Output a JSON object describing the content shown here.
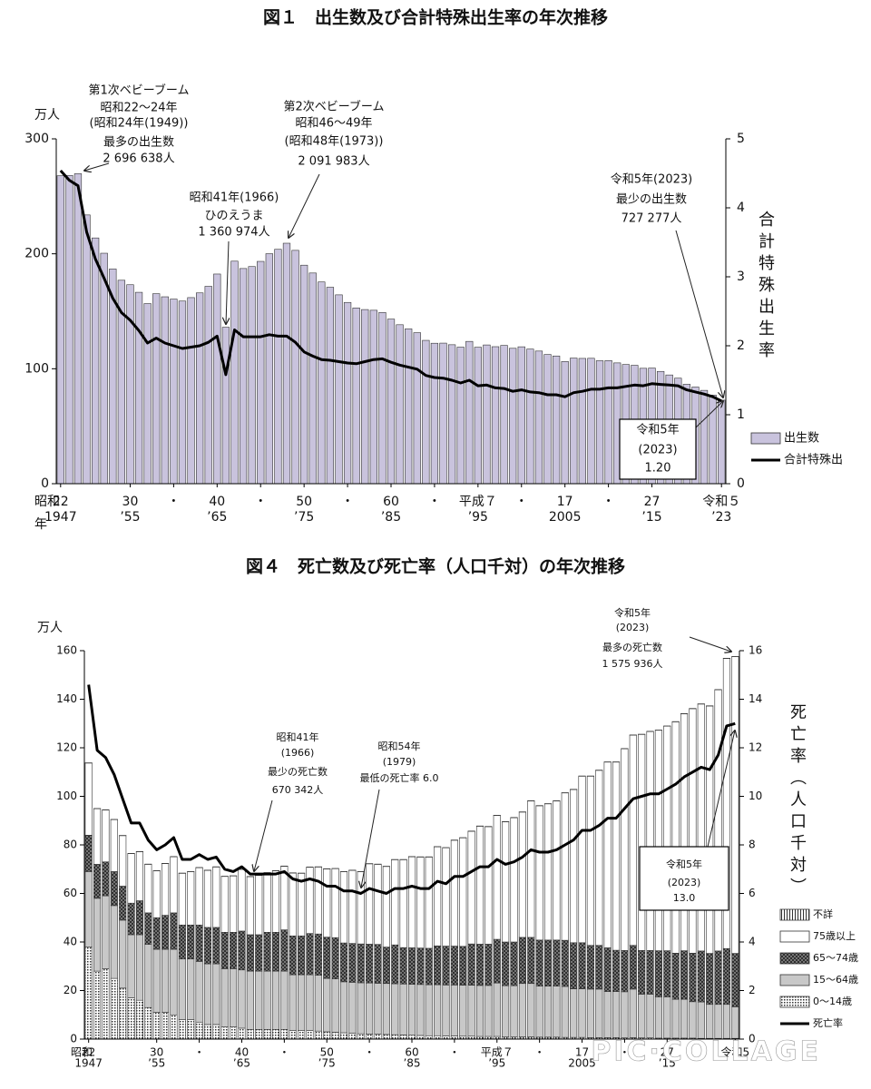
{
  "chart_data": [
    {
      "type": "bar_line",
      "title": "図１　出生数及び合計特殊出生率の年次推移",
      "y_label": "万人",
      "y2_label": "合計特殊出生率",
      "x_era_label": "昭和",
      "x_unit_label": "年",
      "x": [
        1947,
        1948,
        1949,
        1950,
        1951,
        1952,
        1953,
        1954,
        1955,
        1956,
        1957,
        1958,
        1959,
        1960,
        1961,
        1962,
        1963,
        1964,
        1965,
        1966,
        1967,
        1968,
        1969,
        1970,
        1971,
        1972,
        1973,
        1974,
        1975,
        1976,
        1977,
        1978,
        1979,
        1980,
        1981,
        1982,
        1983,
        1984,
        1985,
        1986,
        1987,
        1988,
        1989,
        1990,
        1991,
        1992,
        1993,
        1994,
        1995,
        1996,
        1997,
        1998,
        1999,
        2000,
        2001,
        2002,
        2003,
        2004,
        2005,
        2006,
        2007,
        2008,
        2009,
        2010,
        2011,
        2012,
        2013,
        2014,
        2015,
        2016,
        2017,
        2018,
        2019,
        2020,
        2021,
        2022,
        2023
      ],
      "series": [
        {
          "name": "出生数",
          "color": "#c9c3dd",
          "values": [
            267.9,
            268.2,
            269.7,
            233.8,
            213.8,
            200.5,
            186.8,
            177.0,
            173.1,
            166.5,
            156.7,
            165.3,
            162.6,
            160.6,
            158.9,
            161.9,
            166.0,
            171.7,
            182.4,
            136.1,
            193.6,
            187.2,
            188.9,
            193.4,
            200.1,
            203.9,
            209.2,
            203.0,
            190.1,
            183.3,
            175.5,
            170.9,
            164.3,
            157.7,
            152.9,
            151.5,
            150.9,
            149.0,
            143.2,
            138.3,
            134.7,
            131.4,
            124.7,
            122.2,
            122.3,
            120.9,
            118.8,
            123.8,
            118.7,
            120.7,
            119.2,
            120.3,
            117.8,
            119.1,
            117.1,
            115.4,
            112.4,
            111.1,
            106.3,
            109.3,
            109.0,
            109.1,
            107.0,
            107.1,
            105.1,
            103.7,
            103.0,
            100.4,
            100.6,
            97.7,
            94.6,
            91.8,
            86.5,
            84.1,
            81.2,
            77.1,
            72.7
          ]
        },
        {
          "name": "合計特殊出",
          "color": "#000000",
          "axis": "y2",
          "values": [
            4.54,
            4.4,
            4.32,
            3.65,
            3.26,
            2.98,
            2.69,
            2.48,
            2.37,
            2.22,
            2.04,
            2.11,
            2.04,
            2.0,
            1.96,
            1.98,
            2.0,
            2.05,
            2.14,
            1.58,
            2.23,
            2.13,
            2.13,
            2.13,
            2.16,
            2.14,
            2.14,
            2.05,
            1.91,
            1.85,
            1.8,
            1.79,
            1.77,
            1.75,
            1.74,
            1.77,
            1.8,
            1.81,
            1.76,
            1.72,
            1.69,
            1.66,
            1.57,
            1.54,
            1.53,
            1.5,
            1.46,
            1.5,
            1.42,
            1.43,
            1.39,
            1.38,
            1.34,
            1.36,
            1.33,
            1.32,
            1.29,
            1.29,
            1.26,
            1.32,
            1.34,
            1.37,
            1.37,
            1.39,
            1.39,
            1.41,
            1.43,
            1.42,
            1.45,
            1.44,
            1.43,
            1.42,
            1.36,
            1.33,
            1.3,
            1.26,
            1.2
          ]
        }
      ],
      "ylim": [
        0,
        300
      ],
      "yticks": [
        0,
        100,
        200,
        300
      ],
      "y2lim": [
        0,
        5
      ],
      "y2ticks": [
        0,
        1,
        2,
        3,
        4,
        5
      ],
      "xticks": [
        {
          "value": 1947,
          "label": "22"
        },
        {
          "value": 1955,
          "label": "30"
        },
        {
          "value": 1960,
          "label": "・"
        },
        {
          "value": 1965,
          "label": "40"
        },
        {
          "value": 1970,
          "label": "・"
        },
        {
          "value": 1975,
          "label": "50"
        },
        {
          "value": 1980,
          "label": "・"
        },
        {
          "value": 1985,
          "label": "60"
        },
        {
          "value": 1990,
          "label": "・"
        },
        {
          "value": 1995,
          "label": "平成７"
        },
        {
          "value": 2000,
          "label": "・"
        },
        {
          "value": 2005,
          "label": "17"
        },
        {
          "value": 2010,
          "label": "・"
        },
        {
          "value": 2015,
          "label": "27"
        },
        {
          "value": 2023,
          "label": "令和５"
        }
      ],
      "xticks2": [
        1947,
        {
          "value": 1955,
          "label": "’55"
        },
        {
          "value": 1965,
          "label": "’65"
        },
        {
          "value": 1975,
          "label": "’75"
        },
        {
          "value": 1985,
          "label": "’85"
        },
        {
          "value": 1995,
          "label": "’95"
        },
        2005,
        {
          "value": 2015,
          "label": "’15"
        },
        {
          "value": 2023,
          "label": "’23"
        }
      ],
      "grid": false,
      "annotations": [
        {
          "lines": [
            "第1次ベビーブーム",
            "昭和22〜24年",
            "(昭和24年(1949))",
            "最多の出生数",
            "2 696 638人"
          ]
        },
        {
          "lines": [
            "第2次ベビーブーム",
            "昭和46〜49年",
            "(昭和48年(1973))",
            "2 091 983人"
          ]
        },
        {
          "lines": [
            "昭和41年(1966)",
            "ひのえうま",
            "1 360 974人"
          ]
        },
        {
          "lines": [
            "令和5年(2023)",
            "最少の出生数",
            "727 277人"
          ]
        }
      ],
      "callout": {
        "lines": [
          "令和5年",
          "(2023)",
          "1.20"
        ]
      }
    },
    {
      "type": "stacked_bar_line",
      "title": "図４　死亡数及び死亡率（人口千対）の年次推移",
      "y_label": "万人",
      "y2_label": "死亡率（人口千対）",
      "x_era_label": "昭和",
      "x": [
        1947,
        1948,
        1949,
        1950,
        1951,
        1952,
        1953,
        1954,
        1955,
        1956,
        1957,
        1958,
        1959,
        1960,
        1961,
        1962,
        1963,
        1964,
        1965,
        1966,
        1967,
        1968,
        1969,
        1970,
        1971,
        1972,
        1973,
        1974,
        1975,
        1976,
        1977,
        1978,
        1979,
        1980,
        1981,
        1982,
        1983,
        1984,
        1985,
        1986,
        1987,
        1988,
        1989,
        1990,
        1991,
        1992,
        1993,
        1994,
        1995,
        1996,
        1997,
        1998,
        1999,
        2000,
        2001,
        2002,
        2003,
        2004,
        2005,
        2006,
        2007,
        2008,
        2009,
        2010,
        2011,
        2012,
        2013,
        2014,
        2015,
        2016,
        2017,
        2018,
        2019,
        2020,
        2021,
        2022,
        2023
      ],
      "series": [
        {
          "name": "0〜14歳",
          "color": "#ffffff",
          "pattern": "dots",
          "values": [
            38,
            28,
            29,
            25,
            21,
            17,
            16,
            13,
            11,
            11,
            10,
            8,
            8,
            7,
            6,
            6,
            5,
            5,
            4.5,
            4,
            4,
            4,
            4,
            4,
            3.5,
            3.5,
            3.5,
            3.3,
            3,
            2.8,
            2.6,
            2.4,
            2.2,
            2.1,
            2,
            1.9,
            1.8,
            1.7,
            1.6,
            1.5,
            1.4,
            1.4,
            1.3,
            1.3,
            1.2,
            1.2,
            1.1,
            1.1,
            1.1,
            1.0,
            1.0,
            0.9,
            0.9,
            0.8,
            0.8,
            0.8,
            0.7,
            0.7,
            0.7,
            0.6,
            0.6,
            0.6,
            0.6,
            0.5,
            0.6,
            0.5,
            0.5,
            0.4,
            0.4,
            0.4,
            0.4,
            0.4,
            0.3,
            0.3,
            0.3,
            0.3,
            0.3
          ]
        },
        {
          "name": "15〜64歳",
          "color": "#c8c8c8",
          "values": [
            31,
            30,
            30,
            30,
            28,
            26,
            27,
            26,
            26,
            26,
            27,
            25,
            25,
            25,
            25,
            25,
            24,
            24,
            24,
            24,
            24,
            24,
            24,
            24,
            23,
            23,
            23,
            23,
            22,
            22,
            21,
            21,
            21,
            21,
            21,
            21,
            21,
            21,
            21,
            21,
            21,
            21,
            21,
            21,
            21,
            21,
            21,
            21,
            22,
            21,
            21,
            22,
            22,
            21,
            21,
            21,
            21,
            20,
            20,
            20,
            20,
            19,
            19,
            19,
            20,
            18,
            18,
            17,
            17,
            16,
            16,
            15,
            15,
            14,
            14,
            14,
            13
          ]
        },
        {
          "name": "65〜74歳",
          "color": "#555555",
          "pattern": "crosshatch",
          "values": [
            15,
            14,
            14,
            14,
            14,
            13,
            14,
            13,
            13,
            14,
            15,
            14,
            14,
            15,
            15,
            15,
            15,
            15,
            16,
            15,
            15,
            16,
            16,
            17,
            16,
            16,
            17,
            17,
            17,
            17,
            16,
            16,
            16,
            16,
            16,
            15,
            16,
            15,
            15,
            15,
            15,
            16,
            16,
            16,
            16,
            17,
            17,
            17,
            18,
            18,
            18,
            19,
            19,
            19,
            19,
            19,
            19,
            19,
            19,
            18,
            18,
            18,
            17,
            17,
            18,
            18,
            18,
            19,
            19,
            19,
            20,
            20,
            21,
            21,
            22,
            23,
            22
          ]
        },
        {
          "name": "75歳以上",
          "color": "#ffffff",
          "values": [
            29.7,
            22.9,
            21.4,
            21.4,
            20.8,
            20.4,
            20.2,
            20.0,
            19.3,
            21.3,
            23.1,
            21.3,
            21.9,
            23.6,
            23.5,
            24.9,
            23.0,
            23.2,
            25.4,
            23.9,
            24.4,
            24.5,
            25.3,
            26.2,
            25.9,
            25.8,
            27.3,
            27.6,
            28.1,
            28.4,
            29.3,
            30.1,
            29.7,
            33.1,
            33.0,
            33.2,
            35.1,
            36.2,
            37.5,
            37.5,
            37.6,
            40.8,
            40.5,
            43.6,
            44.7,
            46.4,
            48.6,
            48.4,
            51.0,
            49.5,
            51.2,
            51.6,
            56.2,
            55.3,
            56.1,
            57.3,
            60.7,
            63.1,
            68.6,
            69.7,
            72.1,
            76.5,
            77.5,
            83.1,
            86.6,
            89.0,
            90.2,
            90.8,
            92.5,
            95.3,
            97.6,
            100.7,
            101.7,
            101.9,
            107.6,
            119.5,
            122.2
          ]
        },
        {
          "name": "不詳",
          "color": "#ffffff",
          "pattern": "stripes",
          "values": [
            0.1,
            0.1,
            0.1,
            0.1,
            0.1,
            0.1,
            0.1,
            0.1,
            0.1,
            0.1,
            0.1,
            0.1,
            0.1,
            0.1,
            0.1,
            0.1,
            0.1,
            0.1,
            0.1,
            0.1,
            0.1,
            0.1,
            0.1,
            0.1,
            0.1,
            0.1,
            0.1,
            0.1,
            0.1,
            0.1,
            0.1,
            0.1,
            0.1,
            0.1,
            0.1,
            0.1,
            0.1,
            0.1,
            0.1,
            0.1,
            0.1,
            0.1,
            0.1,
            0.1,
            0.1,
            0.1,
            0.1,
            0.1,
            0.1,
            0.1,
            0.1,
            0.1,
            0.1,
            0.1,
            0.1,
            0.1,
            0.1,
            0.1,
            0.1,
            0.1,
            0.1,
            0.1,
            0.1,
            0.1,
            0.1,
            0.1,
            0.1,
            0.1,
            0.1,
            0.1,
            0.1,
            0.1,
            0.1,
            0.1,
            0.1,
            0.1,
            0.1
          ]
        },
        {
          "name": "死亡率",
          "color": "#000000",
          "axis": "y2",
          "values": [
            14.6,
            11.9,
            11.6,
            10.9,
            9.9,
            8.9,
            8.9,
            8.2,
            7.8,
            8.0,
            8.3,
            7.4,
            7.4,
            7.6,
            7.4,
            7.5,
            7.0,
            6.9,
            7.1,
            6.8,
            6.8,
            6.8,
            6.8,
            6.9,
            6.6,
            6.5,
            6.6,
            6.5,
            6.3,
            6.3,
            6.1,
            6.1,
            6.0,
            6.2,
            6.1,
            6.0,
            6.2,
            6.2,
            6.3,
            6.2,
            6.2,
            6.5,
            6.4,
            6.7,
            6.7,
            6.9,
            7.1,
            7.1,
            7.4,
            7.2,
            7.3,
            7.5,
            7.8,
            7.7,
            7.7,
            7.8,
            8.0,
            8.2,
            8.6,
            8.6,
            8.8,
            9.1,
            9.1,
            9.5,
            9.9,
            10.0,
            10.1,
            10.1,
            10.3,
            10.5,
            10.8,
            11.0,
            11.2,
            11.1,
            11.7,
            12.9,
            13.0
          ]
        }
      ],
      "ylim": [
        0,
        160
      ],
      "yticks": [
        0,
        20,
        40,
        60,
        80,
        100,
        120,
        140,
        160
      ],
      "y2lim": [
        0,
        16
      ],
      "y2ticks": [
        0,
        2,
        4,
        6,
        8,
        10,
        12,
        14,
        16
      ],
      "xticks": [
        {
          "value": 1947,
          "label": "22"
        },
        {
          "value": 1955,
          "label": "30"
        },
        {
          "value": 1960,
          "label": "・"
        },
        {
          "value": 1965,
          "label": "40"
        },
        {
          "value": 1970,
          "label": "・"
        },
        {
          "value": 1975,
          "label": "50"
        },
        {
          "value": 1980,
          "label": "・"
        },
        {
          "value": 1985,
          "label": "60"
        },
        {
          "value": 1990,
          "label": "・"
        },
        {
          "value": 1995,
          "label": "平成７"
        },
        {
          "value": 2000,
          "label": "・"
        },
        {
          "value": 2005,
          "label": "17"
        },
        {
          "value": 2010,
          "label": "・"
        },
        {
          "value": 2015,
          "label": "27"
        },
        {
          "value": 2023,
          "label": "令和5"
        }
      ],
      "xticks2": [
        1947,
        {
          "value": 1955,
          "label": "’55"
        },
        {
          "value": 1965,
          "label": "’65"
        },
        {
          "value": 1975,
          "label": "’75"
        },
        {
          "value": 1985,
          "label": "’85"
        },
        {
          "value": 1995,
          "label": "’95"
        },
        2005,
        {
          "value": 2015,
          "label": "’15"
        },
        23
      ],
      "grid": false,
      "annotations": [
        {
          "lines": [
            "令和5年",
            "(2023)",
            "最多の死亡数",
            "1 575 936人"
          ]
        },
        {
          "lines": [
            "昭和41年",
            "(1966)",
            "最少の死亡数",
            "670 342人"
          ]
        },
        {
          "lines": [
            "昭和54年",
            "(1979)",
            "最低の死亡率 6.0"
          ]
        }
      ],
      "callout": {
        "lines": [
          "令和5年",
          "(2023)",
          "13.0"
        ]
      }
    }
  ],
  "watermark": "PIC·COLLAGE"
}
